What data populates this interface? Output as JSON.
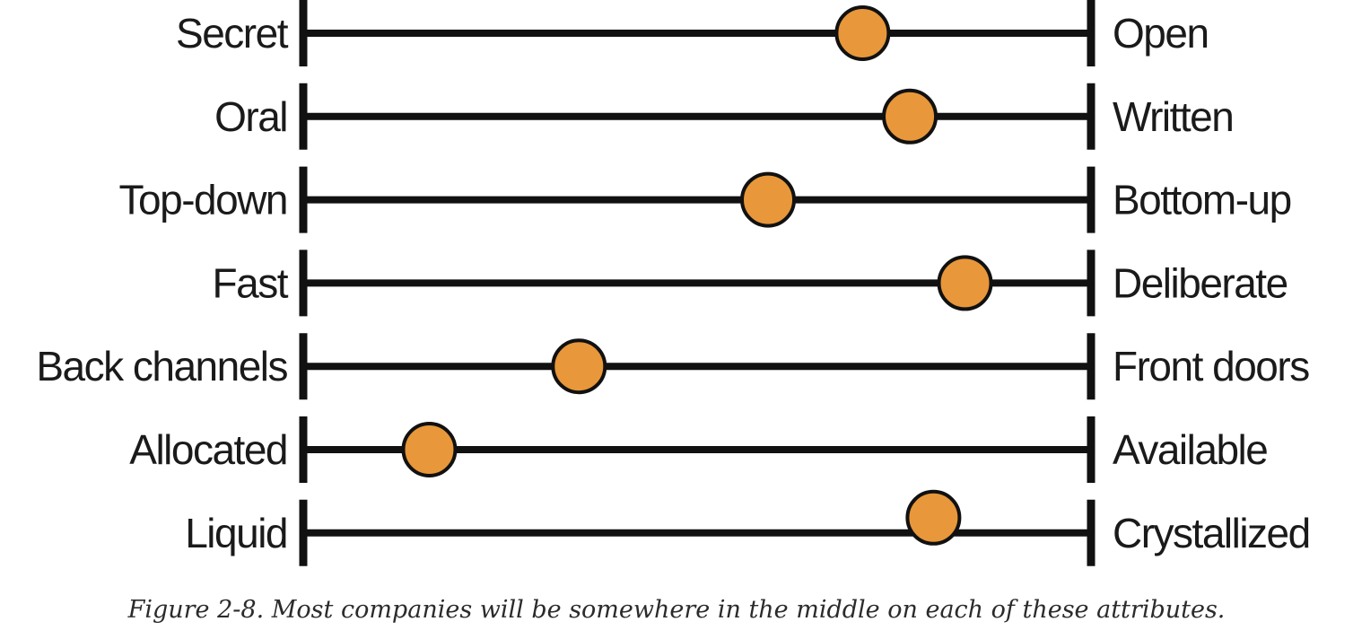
{
  "figure": {
    "caption": "Figure 2-8. Most companies will be somewhere in the middle on each of these attributes.",
    "marker_color": "#E8973A",
    "line_color": "#111111",
    "rows": [
      {
        "left": "Secret",
        "right": "Open",
        "position": 0.71
      },
      {
        "left": "Oral",
        "right": "Written",
        "position": 0.77
      },
      {
        "left": "Top-down",
        "right": "Bottom-up",
        "position": 0.59
      },
      {
        "left": "Fast",
        "right": "Deliberate",
        "position": 0.84
      },
      {
        "left": "Back channels",
        "right": "Front doors",
        "position": 0.35
      },
      {
        "left": "Allocated",
        "right": "Available",
        "position": 0.16
      },
      {
        "left": "Liquid",
        "right": "Crystallized",
        "position": 0.8
      }
    ]
  }
}
